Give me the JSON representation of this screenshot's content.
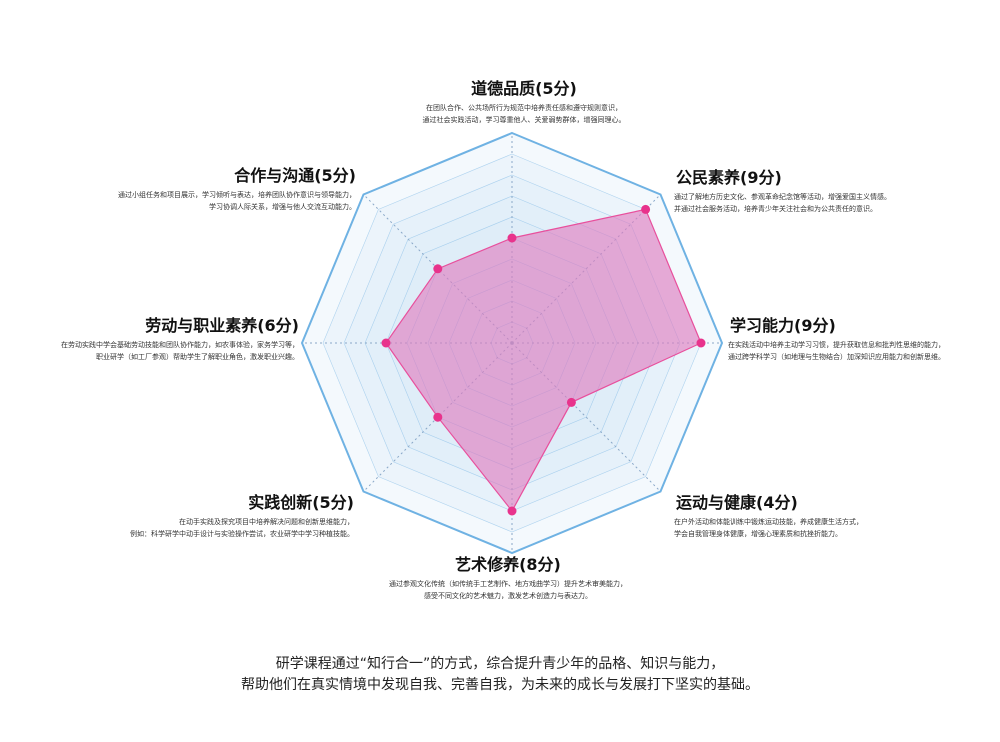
{
  "chart_data": {
    "type": "radar",
    "max": 10,
    "levels": 10,
    "categories": [
      "道德品质(5分)",
      "公民素养(9分)",
      "学习能力(9分)",
      "运动与健康(4分)",
      "艺术修养(8分)",
      "实践创新(5分)",
      "劳动与职业素养(6分)",
      "合作与沟通(5分)"
    ],
    "values": [
      5,
      9,
      9,
      4,
      8,
      5,
      6,
      5
    ],
    "descriptions": [
      [
        "在团队合作、公共场所行为规范中培养责任感和遵守规则意识，",
        "通过社会实践活动，学习尊重他人、关爱弱势群体，增强同理心。"
      ],
      [
        "通过了解地方历史文化、参观革命纪念馆等活动，增强爱国主义情感。",
        "并通过社会服务活动，培养青少年关注社会和为公共责任的意识。"
      ],
      [
        "在实践活动中培养主动学习习惯，提升获取信息和批判性思维的能力，",
        "通过跨学科学习（如地理与生物结合）加深知识应用能力和创新思维。"
      ],
      [
        "在户外活动和体能训练中锻炼运动技能，养成健康生活方式，",
        "学会自我管理身体健康，增强心理素质和抗挫折能力。"
      ],
      [
        "通过参观文化传统（如传统手工艺制作、地方戏曲学习）提升艺术审美能力，",
        "感受不同文化的艺术魅力，激发艺术创造力与表达力。"
      ],
      [
        "在动手实践及探究项目中培养解决问题和创新思维能力，",
        "例如：科学研学中动手设计与实验操作尝试，农业研学中学习种植技能。"
      ],
      [
        "在劳动实践中学会基础劳动技能和团队协作能力，如农事体验，家务学习等，",
        "职业研学（如工厂参观）帮助学生了解职业角色，激发职业兴趣。"
      ],
      [
        "通过小组任务和项目展示，学习倾听与表达，培养团队协作意识与领导能力，",
        "学习协调人际关系，增强与他人交流互动能力。"
      ]
    ],
    "colors": {
      "fill": "#e07bbf",
      "stroke": "#e84f9c",
      "point": "#e8338c",
      "web_fill": "#d7ebf9",
      "web_line": "#6fb2e3",
      "axis": "#8aa8c8"
    }
  },
  "footer": {
    "line1": "研学课程通过“知行合一”的方式，综合提升青少年的品格、知识与能力，",
    "line2": "帮助他们在真实情境中发现自我、完善自我，为未来的成长与发展打下坚实的基础。"
  }
}
